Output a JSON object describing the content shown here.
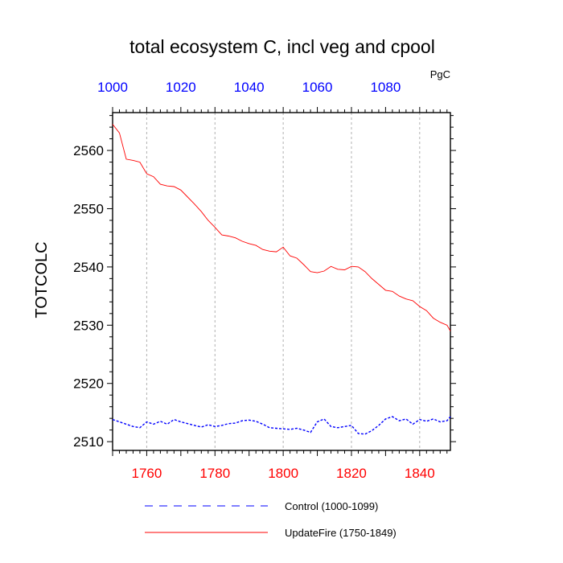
{
  "chart_data": {
    "type": "line",
    "title": "total ecosystem C, incl veg and cpool",
    "units": "PgC",
    "ylabel": "TOTCOLC",
    "xlabel": "",
    "ylim": [
      2508.5,
      2566.5
    ],
    "yticks": [
      2510,
      2520,
      2530,
      2540,
      2550,
      2560
    ],
    "x_bottom": {
      "range": [
        1750,
        1849
      ],
      "ticks": [
        1760,
        1780,
        1800,
        1820,
        1840
      ],
      "color": "#ff0000"
    },
    "x_top": {
      "range": [
        1000,
        1099
      ],
      "ticks": [
        1000,
        1020,
        1040,
        1060,
        1080
      ],
      "color": "#0000ff"
    },
    "grid": "vertical dashed at bottom-axis ticks",
    "legend_position": "bottom",
    "series": [
      {
        "name": "Control (1000-1099)",
        "axis": "top",
        "color": "#0000ff",
        "dash": "dashed",
        "x": [
          1000,
          1002,
          1004,
          1006,
          1008,
          1010,
          1012,
          1014,
          1016,
          1018,
          1020,
          1022,
          1024,
          1026,
          1028,
          1030,
          1032,
          1034,
          1036,
          1038,
          1040,
          1042,
          1044,
          1046,
          1048,
          1050,
          1052,
          1054,
          1056,
          1058,
          1060,
          1062,
          1064,
          1066,
          1068,
          1070,
          1072,
          1074,
          1076,
          1078,
          1080,
          1082,
          1084,
          1086,
          1088,
          1090,
          1092,
          1094,
          1096,
          1098,
          1099
        ],
        "y": [
          2513.8,
          2513.4,
          2513.0,
          2512.6,
          2512.4,
          2513.4,
          2513.0,
          2513.5,
          2513.0,
          2513.8,
          2513.4,
          2513.1,
          2512.8,
          2512.5,
          2512.9,
          2512.6,
          2512.8,
          2513.1,
          2513.2,
          2513.6,
          2513.7,
          2513.5,
          2513.0,
          2512.4,
          2512.3,
          2512.2,
          2512.1,
          2512.3,
          2512.0,
          2511.6,
          2513.4,
          2513.9,
          2512.6,
          2512.4,
          2512.6,
          2512.8,
          2511.4,
          2511.3,
          2511.9,
          2512.8,
          2513.9,
          2514.3,
          2513.6,
          2513.9,
          2513.0,
          2513.8,
          2513.5,
          2513.9,
          2513.4,
          2513.6,
          2514.3
        ]
      },
      {
        "name": "UpdateFire (1750-1849)",
        "axis": "bottom",
        "color": "#ff0000",
        "dash": "solid",
        "x": [
          1750,
          1752,
          1754,
          1756,
          1758,
          1760,
          1762,
          1764,
          1766,
          1768,
          1770,
          1772,
          1774,
          1776,
          1778,
          1780,
          1782,
          1784,
          1786,
          1788,
          1790,
          1792,
          1794,
          1796,
          1798,
          1800,
          1802,
          1804,
          1806,
          1808,
          1810,
          1812,
          1814,
          1816,
          1818,
          1820,
          1822,
          1824,
          1826,
          1828,
          1830,
          1832,
          1834,
          1836,
          1838,
          1840,
          1842,
          1844,
          1846,
          1848,
          1849
        ],
        "y": [
          2564.5,
          2563.0,
          2558.5,
          2558.3,
          2558.0,
          2556.0,
          2555.5,
          2554.2,
          2553.9,
          2553.8,
          2553.2,
          2552.0,
          2550.8,
          2549.5,
          2548.0,
          2546.8,
          2545.5,
          2545.3,
          2545.0,
          2544.4,
          2544.0,
          2543.7,
          2543.0,
          2542.7,
          2542.6,
          2543.4,
          2541.9,
          2541.5,
          2540.4,
          2539.2,
          2539.0,
          2539.3,
          2540.1,
          2539.6,
          2539.5,
          2540.1,
          2540.0,
          2539.2,
          2538.0,
          2537.0,
          2536.0,
          2535.8,
          2535.0,
          2534.5,
          2534.2,
          2533.2,
          2532.5,
          2531.2,
          2530.5,
          2530.0,
          2529.0
        ]
      }
    ]
  }
}
